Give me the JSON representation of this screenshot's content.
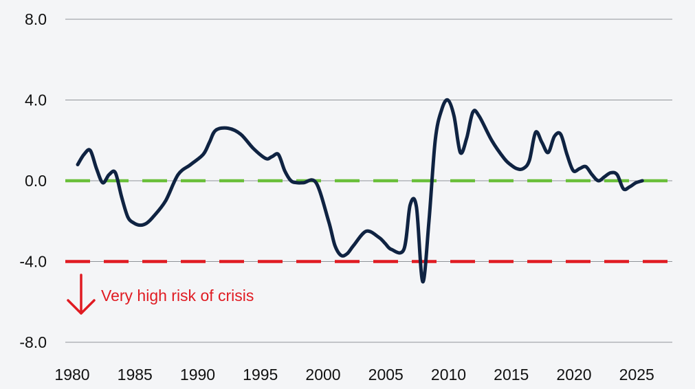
{
  "chart_data": {
    "type": "line",
    "title": "",
    "xlabel": "",
    "ylabel": "",
    "xlim": [
      1980,
      2027
    ],
    "ylim": [
      -8,
      8
    ],
    "yticks": [
      8,
      4,
      0,
      -4,
      -8
    ],
    "ytick_labels": [
      "8.0",
      "4.0",
      "0.0",
      "-4.0",
      "-8.0"
    ],
    "xticks": [
      1980,
      1985,
      1990,
      1995,
      2000,
      2005,
      2010,
      2015,
      2020,
      2025
    ],
    "xtick_labels": [
      "1980",
      "1985",
      "1990",
      "1995",
      "2000",
      "2005",
      "2010",
      "2015",
      "2020",
      "2025"
    ],
    "grid": true,
    "series": [
      {
        "color": "#0f2342",
        "x": [
          1980,
          1980.5,
          1981,
          1981.5,
          1982,
          1982.5,
          1983,
          1983.5,
          1984,
          1984.5,
          1985,
          1985.5,
          1986,
          1987,
          1988,
          1989,
          1990,
          1990.5,
          1991,
          1992,
          1993,
          1994,
          1995,
          1995.5,
          1996,
          1996.5,
          1997,
          1997.5,
          1998,
          1999,
          2000,
          2000.5,
          2001,
          2001.5,
          2002,
          2003,
          2004,
          2004.5,
          2005,
          2006,
          2006.5,
          2007,
          2007.5,
          2008,
          2008.5,
          2009,
          2009.5,
          2010,
          2010.5,
          2011,
          2011.5,
          2012,
          2013,
          2014,
          2014.5,
          2015,
          2015.5,
          2016,
          2016.5,
          2017,
          2017.5,
          2018,
          2018.5,
          2019,
          2019.5,
          2020,
          2020.5,
          2021,
          2021.5,
          2022,
          2022.5,
          2023,
          2023.5,
          2024,
          2024.5,
          2025
        ],
        "values": [
          0.8,
          1.3,
          1.5,
          0.6,
          -0.1,
          0.3,
          0.4,
          -0.8,
          -1.8,
          -2.1,
          -2.2,
          -2.1,
          -1.8,
          -1.0,
          0.3,
          0.8,
          1.3,
          1.9,
          2.5,
          2.6,
          2.3,
          1.6,
          1.1,
          1.2,
          1.3,
          0.5,
          0.0,
          -0.1,
          -0.1,
          -0.1,
          -2.0,
          -3.2,
          -3.7,
          -3.6,
          -3.2,
          -2.5,
          -2.8,
          -3.1,
          -3.4,
          -3.4,
          -1.2,
          -1.3,
          -5.0,
          -2.0,
          2.0,
          3.5,
          4.0,
          3.2,
          1.4,
          2.1,
          3.4,
          3.2,
          2.0,
          1.1,
          0.8,
          0.6,
          0.6,
          1.0,
          2.4,
          1.9,
          1.4,
          2.2,
          2.3,
          1.3,
          0.5,
          0.6,
          0.7,
          0.3,
          0.0,
          0.2,
          0.4,
          0.3,
          -0.4,
          -0.3,
          -0.1,
          0.0
        ]
      }
    ],
    "reference_lines": [
      {
        "y": 0,
        "color": "#6abf3a",
        "style": "dashed"
      },
      {
        "y": -4,
        "color": "#e01b22",
        "style": "dashed"
      }
    ],
    "annotations": [
      {
        "text": "Very high risk of crisis",
        "color": "#e01b22",
        "icon": "down-arrow-icon"
      }
    ]
  }
}
